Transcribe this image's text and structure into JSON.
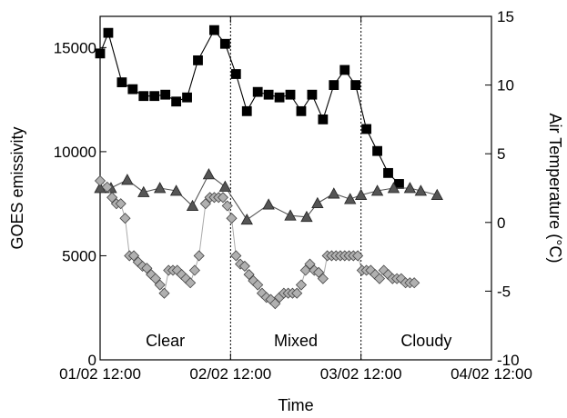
{
  "chart_data": {
    "type": "line",
    "title": "",
    "xlabel": "Time",
    "ylabel_left": "GOES emissivity",
    "ylabel_right": "Air Temperature (°C)",
    "x_range": [
      0,
      72
    ],
    "x_unit": "hours since 01/02 12:00",
    "ylim_left": [
      0,
      16500
    ],
    "ylim_right": [
      -10,
      15
    ],
    "x_ticks": [
      {
        "x": 0,
        "label": "01/02 12:00"
      },
      {
        "x": 24,
        "label": "02/02 12:00"
      },
      {
        "x": 48,
        "label": "03/02 12:00"
      },
      {
        "x": 72,
        "label": "04/02 12:00"
      }
    ],
    "y_ticks_left": [
      {
        "v": 0,
        "label": "0"
      },
      {
        "v": 5000,
        "label": "5000"
      },
      {
        "v": 10000,
        "label": "10000"
      },
      {
        "v": 15000,
        "label": "15000"
      }
    ],
    "y_ticks_right": [
      {
        "v": -10,
        "label": "-10"
      },
      {
        "v": -5,
        "label": "-5"
      },
      {
        "v": 0,
        "label": "0"
      },
      {
        "v": 5,
        "label": "5"
      },
      {
        "v": 10,
        "label": "10"
      },
      {
        "v": 15,
        "label": "15"
      }
    ],
    "regions": [
      {
        "label": "Clear",
        "x_center": 12
      },
      {
        "label": "Mixed",
        "x_center": 36
      },
      {
        "label": "Cloudy",
        "x_center": 60
      }
    ],
    "dividers": [
      24,
      48
    ],
    "series": [
      {
        "marker": "square",
        "axis": "right",
        "fill": "#000000",
        "line": "#000000",
        "points": [
          [
            0,
            12.3
          ],
          [
            1.5,
            13.8
          ],
          [
            4,
            10.2
          ],
          [
            6,
            9.7
          ],
          [
            8,
            9.2
          ],
          [
            10,
            9.2
          ],
          [
            12,
            9.3
          ],
          [
            14,
            8.8
          ],
          [
            16,
            9.1
          ],
          [
            18,
            11.8
          ],
          [
            21,
            14.0
          ],
          [
            23,
            13.0
          ],
          [
            25,
            10.8
          ],
          [
            27,
            8.1
          ],
          [
            29,
            9.5
          ],
          [
            31,
            9.3
          ],
          [
            33,
            9.1
          ],
          [
            35,
            9.3
          ],
          [
            37,
            8.1
          ],
          [
            39,
            9.3
          ],
          [
            41,
            7.5
          ],
          [
            43,
            10.0
          ],
          [
            45,
            11.1
          ],
          [
            47,
            10.0
          ],
          [
            49,
            6.8
          ],
          [
            51,
            5.2
          ],
          [
            53,
            3.6
          ],
          [
            55,
            2.8
          ]
        ]
      },
      {
        "marker": "triangle",
        "axis": "right",
        "fill": "#555555",
        "line": "#555555",
        "points": [
          [
            0,
            2.5
          ],
          [
            2,
            2.5
          ],
          [
            5,
            3.1
          ],
          [
            8,
            2.2
          ],
          [
            11,
            2.5
          ],
          [
            14,
            2.3
          ],
          [
            17,
            1.2
          ],
          [
            20,
            3.5
          ],
          [
            23,
            2.6
          ],
          [
            27,
            0.2
          ],
          [
            31,
            1.3
          ],
          [
            35,
            0.5
          ],
          [
            38,
            0.4
          ],
          [
            40,
            1.4
          ],
          [
            43,
            2.1
          ],
          [
            46,
            1.7
          ],
          [
            48,
            2.0
          ],
          [
            51,
            2.3
          ],
          [
            54,
            2.5
          ],
          [
            57,
            2.5
          ],
          [
            59,
            2.3
          ],
          [
            62,
            2.0
          ]
        ]
      },
      {
        "marker": "diamond",
        "axis": "left",
        "fill": "#b0b0b0",
        "line": "#aaaaaa",
        "points": [
          [
            0,
            8600
          ],
          [
            1.3,
            8300
          ],
          [
            2.2,
            7800
          ],
          [
            3,
            7500
          ],
          [
            3.8,
            7500
          ],
          [
            4.6,
            6800
          ],
          [
            5.4,
            5000
          ],
          [
            6.2,
            5000
          ],
          [
            7,
            4700
          ],
          [
            7.8,
            4500
          ],
          [
            8.6,
            4400
          ],
          [
            9.4,
            4100
          ],
          [
            10.2,
            3900
          ],
          [
            11,
            3600
          ],
          [
            11.8,
            3200
          ],
          [
            12.6,
            4300
          ],
          [
            13.4,
            4300
          ],
          [
            14.2,
            4300
          ],
          [
            15,
            4100
          ],
          [
            15.8,
            3900
          ],
          [
            16.6,
            3700
          ],
          [
            17.4,
            4300
          ],
          [
            18.2,
            5000
          ],
          [
            19.4,
            7500
          ],
          [
            20.2,
            7800
          ],
          [
            21,
            7800
          ],
          [
            21.8,
            7800
          ],
          [
            22.6,
            7800
          ],
          [
            23.4,
            7400
          ],
          [
            24.2,
            6800
          ],
          [
            25,
            5000
          ],
          [
            25.8,
            4600
          ],
          [
            26.6,
            4500
          ],
          [
            27.4,
            4100
          ],
          [
            28.2,
            3800
          ],
          [
            29,
            3600
          ],
          [
            29.8,
            3200
          ],
          [
            30.6,
            3000
          ],
          [
            31.4,
            2900
          ],
          [
            32.2,
            2700
          ],
          [
            33,
            3000
          ],
          [
            33.8,
            3200
          ],
          [
            34.6,
            3200
          ],
          [
            35.4,
            3200
          ],
          [
            36.2,
            3200
          ],
          [
            37,
            3600
          ],
          [
            37.8,
            4300
          ],
          [
            38.6,
            4600
          ],
          [
            39.4,
            4300
          ],
          [
            40.2,
            4200
          ],
          [
            41,
            3900
          ],
          [
            41.8,
            5000
          ],
          [
            42.6,
            5000
          ],
          [
            43.4,
            5000
          ],
          [
            44.2,
            5000
          ],
          [
            45,
            5000
          ],
          [
            45.8,
            5000
          ],
          [
            46.6,
            5000
          ],
          [
            47.4,
            5000
          ],
          [
            48.2,
            4300
          ],
          [
            49,
            4300
          ],
          [
            49.8,
            4300
          ],
          [
            50.6,
            4100
          ],
          [
            51.4,
            3900
          ],
          [
            52.2,
            4300
          ],
          [
            53,
            4100
          ],
          [
            53.8,
            3900
          ],
          [
            54.6,
            3900
          ],
          [
            55.4,
            3900
          ],
          [
            56.2,
            3700
          ],
          [
            57,
            3700
          ],
          [
            57.8,
            3700
          ]
        ]
      }
    ]
  }
}
